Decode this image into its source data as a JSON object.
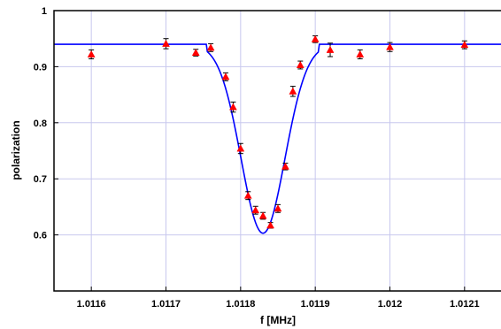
{
  "chart_data": {
    "type": "scatter",
    "xlabel": "f [MHz]",
    "ylabel": "polarization",
    "xlim": [
      1.01155,
      1.01215
    ],
    "ylim": [
      0.5,
      1.0
    ],
    "x_ticks": [
      1.0116,
      1.0117,
      1.0118,
      1.0119,
      1.012,
      1.0121
    ],
    "x_tick_labels": [
      "1.0116",
      "1.0117",
      "1.0118",
      "1.0119",
      "1.012",
      "1.0121"
    ],
    "y_ticks": [
      0.6,
      0.7,
      0.8,
      0.9,
      1.0
    ],
    "y_tick_labels": [
      "0.6",
      "0.7",
      "0.8",
      "0.9",
      "1"
    ],
    "grid": true,
    "series": [
      {
        "kind": "measurements",
        "color": "#ff0000",
        "error_bar_color": "#000000",
        "marker": "triangle",
        "points": [
          {
            "x": 1.0116,
            "y": 0.922,
            "err": 0.008
          },
          {
            "x": 1.0117,
            "y": 0.941,
            "err": 0.009
          },
          {
            "x": 1.01174,
            "y": 0.925,
            "err": 0.006
          },
          {
            "x": 1.01176,
            "y": 0.934,
            "err": 0.007
          },
          {
            "x": 1.01178,
            "y": 0.882,
            "err": 0.007
          },
          {
            "x": 1.01179,
            "y": 0.828,
            "err": 0.009
          },
          {
            "x": 1.0118,
            "y": 0.754,
            "err": 0.009
          },
          {
            "x": 1.01181,
            "y": 0.67,
            "err": 0.007
          },
          {
            "x": 1.01182,
            "y": 0.644,
            "err": 0.007
          },
          {
            "x": 1.01183,
            "y": 0.634,
            "err": 0.006
          },
          {
            "x": 1.01184,
            "y": 0.617,
            "err": 0.005
          },
          {
            "x": 1.01185,
            "y": 0.647,
            "err": 0.007
          },
          {
            "x": 1.01186,
            "y": 0.722,
            "err": 0.006
          },
          {
            "x": 1.01187,
            "y": 0.856,
            "err": 0.009
          },
          {
            "x": 1.01188,
            "y": 0.903,
            "err": 0.007
          },
          {
            "x": 1.0119,
            "y": 0.949,
            "err": 0.006
          },
          {
            "x": 1.01192,
            "y": 0.93,
            "err": 0.012
          },
          {
            "x": 1.01196,
            "y": 0.922,
            "err": 0.008
          },
          {
            "x": 1.012,
            "y": 0.935,
            "err": 0.008
          },
          {
            "x": 1.0121,
            "y": 0.939,
            "err": 0.007
          }
        ]
      },
      {
        "kind": "fit",
        "color": "#0000ff",
        "baseline": 0.94,
        "center": 1.01183,
        "min": 0.603,
        "half_width": 4.15e-05,
        "flat_edges": [
          1.011755,
          1.011905
        ]
      }
    ]
  }
}
